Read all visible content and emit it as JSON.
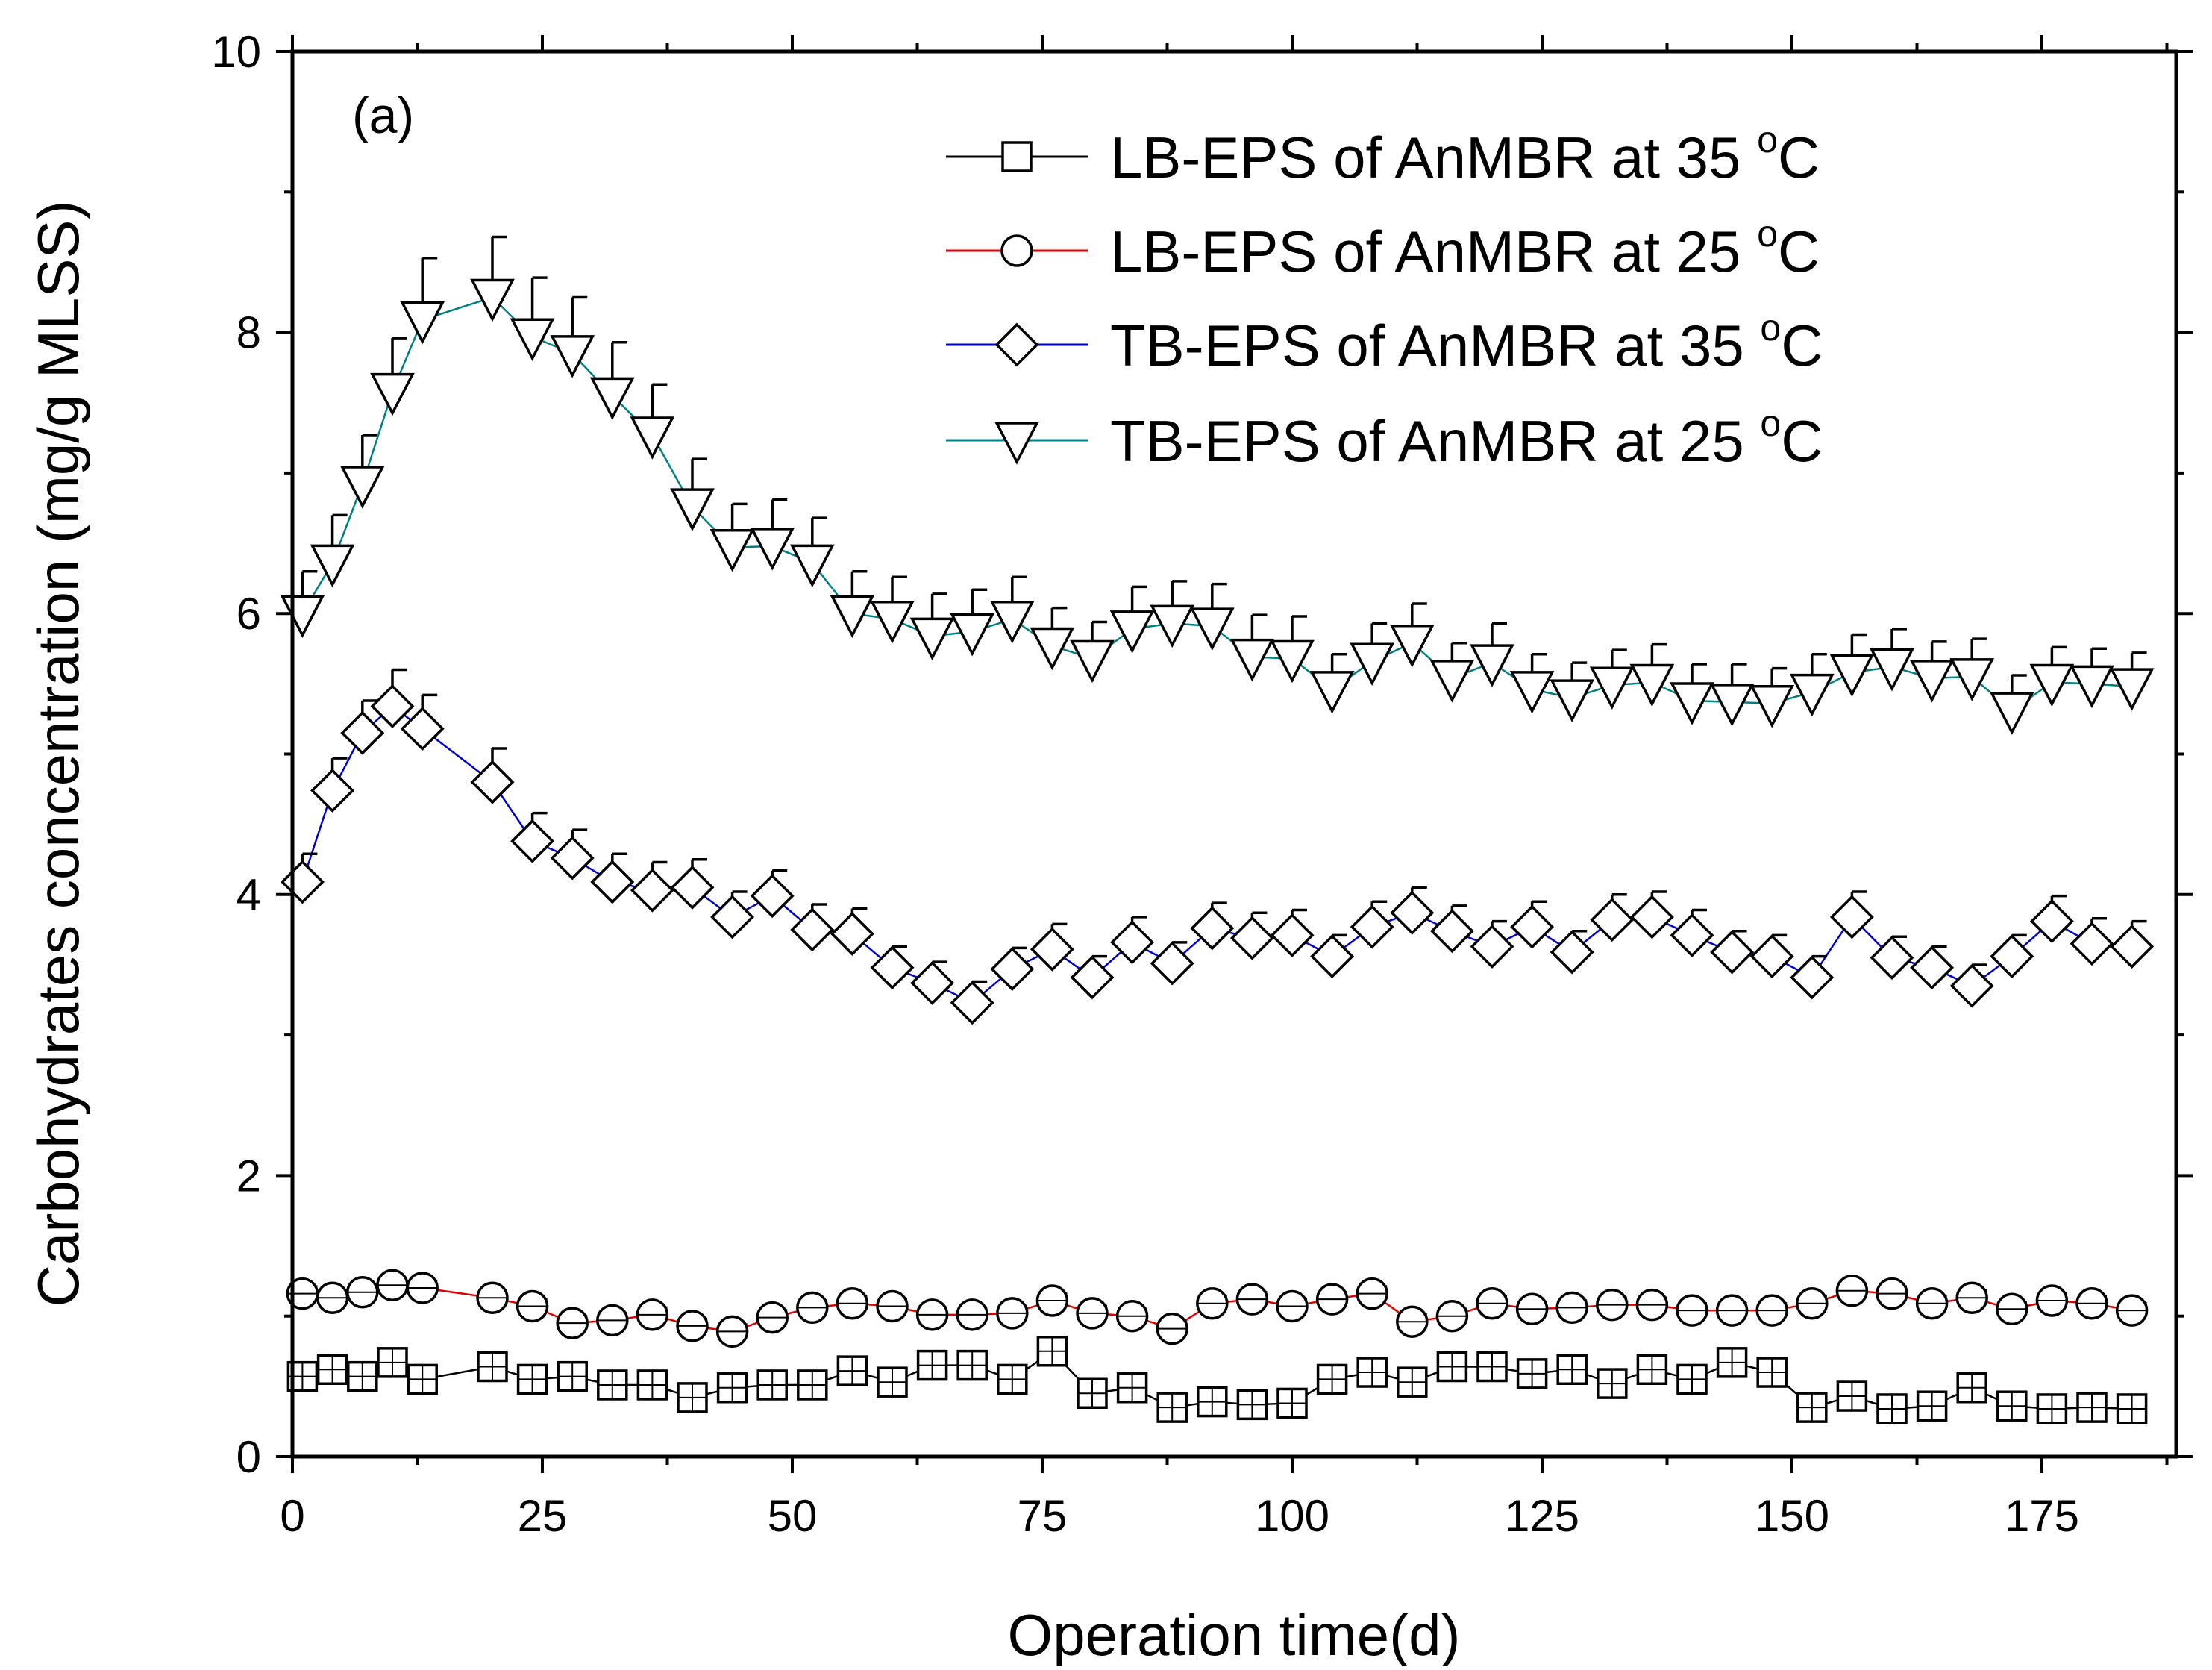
{
  "chart_data": {
    "type": "scatter",
    "panel_label": "(a)",
    "xlabel": "Operation time(d)",
    "ylabel": "Carbohydrates concentration (mg/g MLSS)",
    "xlim": [
      0,
      190
    ],
    "ylim": [
      0,
      10
    ],
    "xticks": [
      0,
      25,
      50,
      75,
      100,
      125,
      150,
      175
    ],
    "xtick_labels": [
      "0",
      "25",
      "50",
      "75",
      "100",
      "125",
      "150",
      "175"
    ],
    "yticks": [
      0,
      2,
      4,
      6,
      8,
      10
    ],
    "ytick_labels": [
      "0",
      "2",
      "4",
      "6",
      "8",
      "10"
    ],
    "legend_position": "top-right",
    "series": [
      {
        "name": "LB-EPS of AnMBR at 35 °C",
        "legend_prefix": "LB-EPS of AnMBR at 35 ",
        "legend_degree": "o",
        "legend_unit": "C",
        "marker": "square",
        "line_color": "#000000",
        "x": [
          1,
          4,
          7,
          10,
          13,
          20,
          24,
          28,
          32,
          36,
          40,
          44,
          48,
          52,
          56,
          60,
          64,
          68,
          72,
          76,
          80,
          84,
          88,
          92,
          96,
          100,
          104,
          108,
          112,
          116,
          120,
          124,
          128,
          132,
          136,
          140,
          144,
          148,
          152,
          156,
          160,
          164,
          168,
          172,
          176,
          180,
          184
        ],
        "y": [
          0.57,
          0.62,
          0.57,
          0.67,
          0.55,
          0.64,
          0.55,
          0.57,
          0.51,
          0.51,
          0.42,
          0.49,
          0.51,
          0.51,
          0.61,
          0.53,
          0.65,
          0.65,
          0.55,
          0.75,
          0.45,
          0.49,
          0.35,
          0.39,
          0.37,
          0.38,
          0.55,
          0.6,
          0.53,
          0.64,
          0.64,
          0.59,
          0.62,
          0.52,
          0.62,
          0.55,
          0.67,
          0.6,
          0.35,
          0.43,
          0.34,
          0.36,
          0.49,
          0.36,
          0.34,
          0.35,
          0.34
        ],
        "error": [
          0.05,
          0.05,
          0.05,
          0.05,
          0.05,
          0.05,
          0.05,
          0.05,
          0.05,
          0.05,
          0.05,
          0.05,
          0.05,
          0.05,
          0.05,
          0.05,
          0.05,
          0.05,
          0.05,
          0.05,
          0.05,
          0.05,
          0.05,
          0.05,
          0.05,
          0.05,
          0.05,
          0.05,
          0.05,
          0.05,
          0.05,
          0.05,
          0.05,
          0.05,
          0.05,
          0.05,
          0.05,
          0.05,
          0.05,
          0.05,
          0.05,
          0.05,
          0.05,
          0.05,
          0.05,
          0.05,
          0.05
        ]
      },
      {
        "name": "LB-EPS of AnMBR at 25 °C",
        "legend_prefix": "LB-EPS of AnMBR at 25 ",
        "legend_degree": "o",
        "legend_unit": "C",
        "marker": "circle",
        "line_color": "#e00000",
        "x": [
          1,
          4,
          7,
          10,
          13,
          20,
          24,
          28,
          32,
          36,
          40,
          44,
          48,
          52,
          56,
          60,
          64,
          68,
          72,
          76,
          80,
          84,
          88,
          92,
          96,
          100,
          104,
          108,
          112,
          116,
          120,
          124,
          128,
          132,
          136,
          140,
          144,
          148,
          152,
          156,
          160,
          164,
          168,
          172,
          176,
          180,
          184
        ],
        "y": [
          1.16,
          1.13,
          1.17,
          1.22,
          1.2,
          1.13,
          1.07,
          0.95,
          0.97,
          1.01,
          0.93,
          0.89,
          0.99,
          1.06,
          1.09,
          1.07,
          1.01,
          1.01,
          1.02,
          1.11,
          1.02,
          1.0,
          0.91,
          1.09,
          1.12,
          1.07,
          1.12,
          1.16,
          0.96,
          1.0,
          1.09,
          1.05,
          1.06,
          1.08,
          1.08,
          1.04,
          1.04,
          1.04,
          1.09,
          1.18,
          1.16,
          1.09,
          1.13,
          1.05,
          1.11,
          1.09,
          1.04
        ],
        "error": [
          0.05,
          0.05,
          0.05,
          0.05,
          0.05,
          0.05,
          0.05,
          0.05,
          0.05,
          0.05,
          0.05,
          0.05,
          0.05,
          0.05,
          0.05,
          0.05,
          0.05,
          0.05,
          0.05,
          0.05,
          0.05,
          0.05,
          0.05,
          0.05,
          0.05,
          0.05,
          0.05,
          0.05,
          0.05,
          0.05,
          0.05,
          0.05,
          0.05,
          0.05,
          0.05,
          0.05,
          0.05,
          0.05,
          0.05,
          0.05,
          0.05,
          0.05,
          0.05,
          0.05,
          0.05,
          0.05,
          0.05
        ]
      },
      {
        "name": "TB-EPS of AnMBR at 35 °C",
        "legend_prefix": "TB-EPS of AnMBR at 35 ",
        "legend_degree": "o",
        "legend_unit": "C",
        "marker": "diamond",
        "line_color": "#0000cc",
        "x": [
          1,
          4,
          7,
          10,
          13,
          20,
          24,
          28,
          32,
          36,
          40,
          44,
          48,
          52,
          56,
          60,
          64,
          68,
          72,
          76,
          80,
          84,
          88,
          92,
          96,
          100,
          104,
          108,
          112,
          116,
          120,
          124,
          128,
          132,
          136,
          140,
          144,
          148,
          152,
          156,
          160,
          164,
          168,
          172,
          176,
          180,
          184
        ],
        "y": [
          4.09,
          4.74,
          5.15,
          5.34,
          5.18,
          4.8,
          4.38,
          4.26,
          4.09,
          4.03,
          4.05,
          3.84,
          3.99,
          3.75,
          3.72,
          3.48,
          3.37,
          3.23,
          3.47,
          3.61,
          3.41,
          3.66,
          3.51,
          3.76,
          3.69,
          3.71,
          3.56,
          3.77,
          3.87,
          3.74,
          3.63,
          3.77,
          3.59,
          3.82,
          3.84,
          3.71,
          3.59,
          3.56,
          3.41,
          3.84,
          3.55,
          3.48,
          3.35,
          3.56,
          3.81,
          3.65,
          3.63
        ],
        "error": [
          0.2,
          0.23,
          0.23,
          0.26,
          0.24,
          0.24,
          0.2,
          0.2,
          0.2,
          0.2,
          0.2,
          0.18,
          0.18,
          0.18,
          0.18,
          0.15,
          0.15,
          0.15,
          0.15,
          0.18,
          0.15,
          0.18,
          0.15,
          0.18,
          0.18,
          0.18,
          0.15,
          0.18,
          0.18,
          0.18,
          0.18,
          0.18,
          0.15,
          0.18,
          0.18,
          0.18,
          0.15,
          0.15,
          0.15,
          0.18,
          0.15,
          0.15,
          0.15,
          0.15,
          0.18,
          0.18,
          0.18
        ]
      },
      {
        "name": "TB-EPS of AnMBR at 25 °C",
        "legend_prefix": "TB-EPS of AnMBR at 25 ",
        "legend_degree": "o",
        "legend_unit": "C",
        "marker": "triangle-down",
        "line_color": "#008080",
        "x": [
          1,
          4,
          7,
          10,
          13,
          20,
          24,
          28,
          32,
          36,
          40,
          44,
          48,
          52,
          56,
          60,
          64,
          68,
          72,
          76,
          80,
          84,
          88,
          92,
          96,
          100,
          104,
          108,
          112,
          116,
          120,
          124,
          128,
          132,
          136,
          140,
          144,
          148,
          152,
          156,
          160,
          164,
          168,
          172,
          176,
          180,
          184
        ],
        "y": [
          6.0,
          6.36,
          6.92,
          7.58,
          8.09,
          8.25,
          7.97,
          7.85,
          7.55,
          7.27,
          6.76,
          6.47,
          6.48,
          6.36,
          6.0,
          5.96,
          5.84,
          5.87,
          5.96,
          5.77,
          5.68,
          5.89,
          5.93,
          5.91,
          5.69,
          5.68,
          5.46,
          5.66,
          5.79,
          5.54,
          5.65,
          5.46,
          5.4,
          5.49,
          5.51,
          5.38,
          5.37,
          5.36,
          5.44,
          5.58,
          5.62,
          5.54,
          5.55,
          5.31,
          5.51,
          5.5,
          5.48
        ],
        "error": [
          0.3,
          0.34,
          0.35,
          0.38,
          0.44,
          0.43,
          0.42,
          0.4,
          0.38,
          0.36,
          0.34,
          0.31,
          0.33,
          0.32,
          0.3,
          0.3,
          0.3,
          0.3,
          0.3,
          0.27,
          0.26,
          0.3,
          0.3,
          0.3,
          0.3,
          0.3,
          0.25,
          0.27,
          0.28,
          0.25,
          0.28,
          0.25,
          0.25,
          0.25,
          0.27,
          0.26,
          0.27,
          0.25,
          0.27,
          0.27,
          0.27,
          0.26,
          0.27,
          0.25,
          0.25,
          0.25,
          0.24
        ]
      }
    ]
  }
}
